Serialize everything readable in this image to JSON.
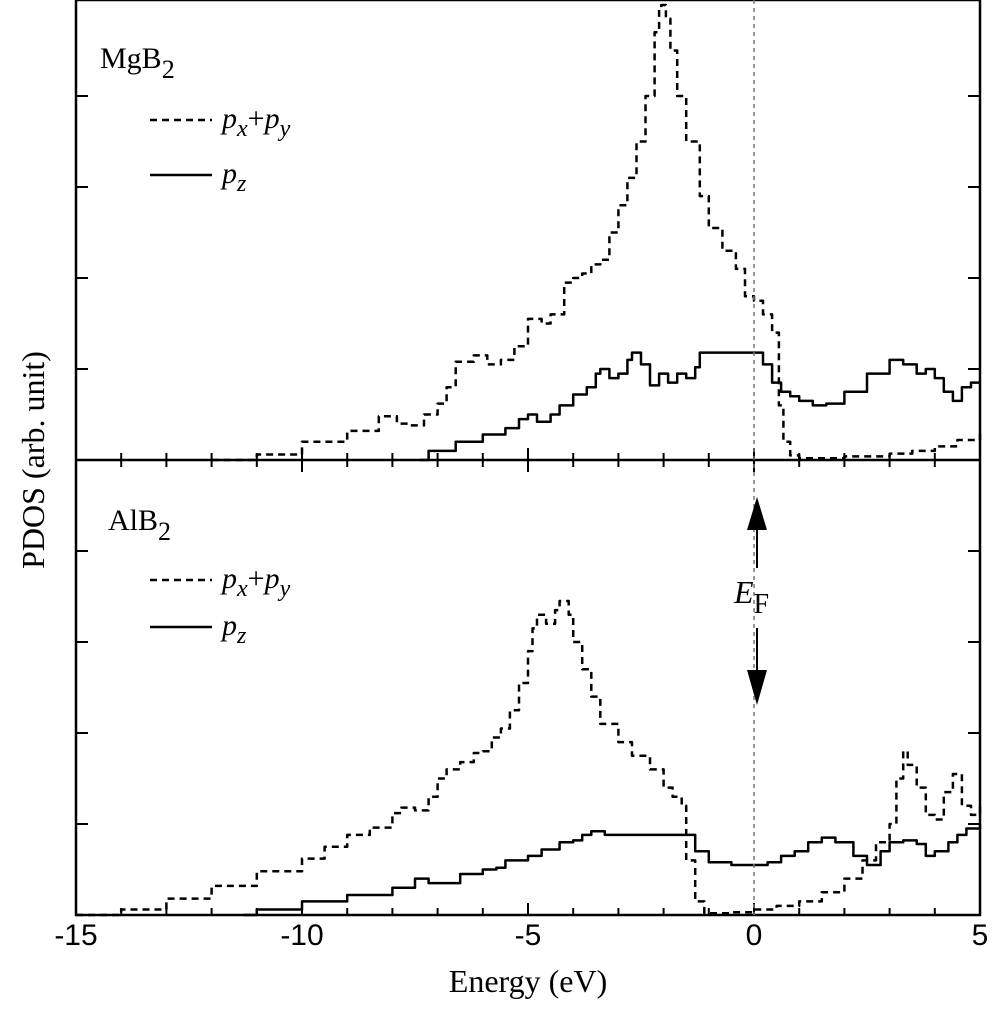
{
  "chart_data": {
    "type": "line",
    "xlabel": "Energy (eV)",
    "ylabel": "PDOS (arb. unit)",
    "xlim": [
      -15,
      5
    ],
    "ylim": [
      0,
      5
    ],
    "x_ticks": [
      -15,
      -10,
      -5,
      0,
      5
    ],
    "x_tick_labels": [
      "-15",
      "-10",
      "-5",
      "0",
      "5"
    ],
    "fermi_level": 0,
    "fermi_label": {
      "main": "E",
      "sub": "F"
    },
    "panels": [
      {
        "label": {
          "main": "MgB",
          "sub": "2"
        },
        "series": [
          {
            "name": "px+py",
            "legend": {
              "p1": "p",
              "s1": "x",
              "plus": "+",
              "p2": "p",
              "s2": "y"
            },
            "style": "dashed",
            "points": [
              [
                -12.0,
                0.0
              ],
              [
                -11.0,
                0.06
              ],
              [
                -10.0,
                0.2
              ],
              [
                -9.0,
                0.32
              ],
              [
                -8.3,
                0.48
              ],
              [
                -7.9,
                0.4
              ],
              [
                -7.6,
                0.38
              ],
              [
                -7.3,
                0.5
              ],
              [
                -7.0,
                0.62
              ],
              [
                -6.8,
                0.8
              ],
              [
                -6.6,
                1.08
              ],
              [
                -6.2,
                1.15
              ],
              [
                -5.9,
                1.05
              ],
              [
                -5.6,
                1.1
              ],
              [
                -5.3,
                1.25
              ],
              [
                -5.0,
                1.55
              ],
              [
                -4.7,
                1.5
              ],
              [
                -4.5,
                1.6
              ],
              [
                -4.2,
                1.95
              ],
              [
                -4.0,
                2.0
              ],
              [
                -3.8,
                2.05
              ],
              [
                -3.6,
                2.15
              ],
              [
                -3.4,
                2.2
              ],
              [
                -3.2,
                2.5
              ],
              [
                -3.0,
                2.8
              ],
              [
                -2.8,
                3.1
              ],
              [
                -2.6,
                3.5
              ],
              [
                -2.4,
                4.0
              ],
              [
                -2.2,
                4.7
              ],
              [
                -2.1,
                4.95
              ],
              [
                -2.05,
                5.0
              ],
              [
                -1.95,
                4.85
              ],
              [
                -1.85,
                4.5
              ],
              [
                -1.7,
                4.0
              ],
              [
                -1.5,
                3.5
              ],
              [
                -1.2,
                2.9
              ],
              [
                -1.0,
                2.55
              ],
              [
                -0.7,
                2.3
              ],
              [
                -0.4,
                2.1
              ],
              [
                -0.2,
                1.8
              ],
              [
                0.0,
                1.75
              ],
              [
                0.2,
                1.6
              ],
              [
                0.4,
                1.4
              ],
              [
                0.55,
                0.6
              ],
              [
                0.65,
                0.2
              ],
              [
                0.8,
                0.05
              ],
              [
                1.0,
                0.02
              ],
              [
                2.0,
                0.04
              ],
              [
                3.0,
                0.07
              ],
              [
                3.5,
                0.1
              ],
              [
                4.0,
                0.15
              ],
              [
                4.5,
                0.22
              ],
              [
                5.0,
                0.32
              ]
            ]
          },
          {
            "name": "pz",
            "legend": {
              "p1": "p",
              "s1": "z"
            },
            "style": "solid",
            "points": [
              [
                -7.4,
                0.0
              ],
              [
                -7.2,
                0.1
              ],
              [
                -6.6,
                0.2
              ],
              [
                -6.0,
                0.28
              ],
              [
                -5.5,
                0.35
              ],
              [
                -5.2,
                0.45
              ],
              [
                -5.0,
                0.5
              ],
              [
                -4.8,
                0.42
              ],
              [
                -4.5,
                0.5
              ],
              [
                -4.3,
                0.6
              ],
              [
                -4.0,
                0.72
              ],
              [
                -3.7,
                0.8
              ],
              [
                -3.5,
                0.95
              ],
              [
                -3.4,
                1.0
              ],
              [
                -3.2,
                0.9
              ],
              [
                -3.0,
                0.95
              ],
              [
                -2.8,
                1.1
              ],
              [
                -2.7,
                1.18
              ],
              [
                -2.5,
                1.05
              ],
              [
                -2.3,
                0.82
              ],
              [
                -2.1,
                0.95
              ],
              [
                -1.9,
                0.85
              ],
              [
                -1.7,
                0.95
              ],
              [
                -1.5,
                0.9
              ],
              [
                -1.3,
                1.02
              ],
              [
                -1.2,
                1.18
              ],
              [
                -1.0,
                1.18
              ],
              [
                0.0,
                1.18
              ],
              [
                0.2,
                1.05
              ],
              [
                0.4,
                0.85
              ],
              [
                0.6,
                0.75
              ],
              [
                0.8,
                0.7
              ],
              [
                1.0,
                0.65
              ],
              [
                1.3,
                0.6
              ],
              [
                1.6,
                0.62
              ],
              [
                2.0,
                0.75
              ],
              [
                2.5,
                0.95
              ],
              [
                3.0,
                1.1
              ],
              [
                3.3,
                1.05
              ],
              [
                3.6,
                0.95
              ],
              [
                3.8,
                1.0
              ],
              [
                4.0,
                0.9
              ],
              [
                4.2,
                0.75
              ],
              [
                4.4,
                0.65
              ],
              [
                4.6,
                0.8
              ],
              [
                4.8,
                0.85
              ],
              [
                5.0,
                0.85
              ]
            ]
          }
        ]
      },
      {
        "label": {
          "main": "AlB",
          "sub": "2"
        },
        "series": [
          {
            "name": "px+py",
            "legend": {
              "p1": "p",
              "s1": "x",
              "plus": "+",
              "p2": "p",
              "s2": "y"
            },
            "style": "dashed",
            "points": [
              [
                -15.0,
                0.0
              ],
              [
                -14.0,
                0.06
              ],
              [
                -13.0,
                0.18
              ],
              [
                -12.0,
                0.32
              ],
              [
                -11.0,
                0.48
              ],
              [
                -10.0,
                0.62
              ],
              [
                -9.5,
                0.75
              ],
              [
                -9.0,
                0.88
              ],
              [
                -8.5,
                0.96
              ],
              [
                -8.0,
                1.12
              ],
              [
                -7.8,
                1.18
              ],
              [
                -7.5,
                1.15
              ],
              [
                -7.2,
                1.3
              ],
              [
                -7.0,
                1.5
              ],
              [
                -6.8,
                1.6
              ],
              [
                -6.5,
                1.68
              ],
              [
                -6.2,
                1.78
              ],
              [
                -6.0,
                1.8
              ],
              [
                -5.8,
                1.95
              ],
              [
                -5.6,
                2.05
              ],
              [
                -5.4,
                2.25
              ],
              [
                -5.2,
                2.55
              ],
              [
                -5.0,
                2.9
              ],
              [
                -4.9,
                3.15
              ],
              [
                -4.8,
                3.3
              ],
              [
                -4.6,
                3.2
              ],
              [
                -4.4,
                3.35
              ],
              [
                -4.3,
                3.45
              ],
              [
                -4.1,
                3.3
              ],
              [
                -4.0,
                3.0
              ],
              [
                -3.8,
                2.7
              ],
              [
                -3.6,
                2.4
              ],
              [
                -3.4,
                2.1
              ],
              [
                -3.0,
                1.9
              ],
              [
                -2.7,
                1.75
              ],
              [
                -2.3,
                1.6
              ],
              [
                -2.0,
                1.4
              ],
              [
                -1.8,
                1.3
              ],
              [
                -1.6,
                1.2
              ],
              [
                -1.5,
                0.6
              ],
              [
                -1.3,
                0.15
              ],
              [
                -1.1,
                0.02
              ],
              [
                -0.5,
                0.03
              ],
              [
                0.0,
                0.06
              ],
              [
                0.5,
                0.1
              ],
              [
                1.0,
                0.15
              ],
              [
                1.5,
                0.25
              ],
              [
                2.0,
                0.4
              ],
              [
                2.4,
                0.6
              ],
              [
                2.7,
                0.8
              ],
              [
                3.0,
                1.0
              ],
              [
                3.15,
                1.5
              ],
              [
                3.3,
                1.8
              ],
              [
                3.4,
                1.65
              ],
              [
                3.6,
                1.4
              ],
              [
                3.8,
                1.1
              ],
              [
                4.0,
                1.05
              ],
              [
                4.2,
                1.35
              ],
              [
                4.4,
                1.55
              ],
              [
                4.6,
                1.2
              ],
              [
                4.8,
                1.1
              ],
              [
                5.0,
                1.2
              ]
            ]
          },
          {
            "name": "pz",
            "legend": {
              "p1": "p",
              "s1": "z"
            },
            "style": "solid",
            "points": [
              [
                -11.3,
                0.0
              ],
              [
                -11.0,
                0.06
              ],
              [
                -10.0,
                0.15
              ],
              [
                -9.0,
                0.22
              ],
              [
                -8.0,
                0.3
              ],
              [
                -7.5,
                0.4
              ],
              [
                -7.2,
                0.35
              ],
              [
                -6.8,
                0.35
              ],
              [
                -6.5,
                0.45
              ],
              [
                -6.0,
                0.5
              ],
              [
                -5.7,
                0.52
              ],
              [
                -5.5,
                0.6
              ],
              [
                -5.0,
                0.65
              ],
              [
                -4.7,
                0.72
              ],
              [
                -4.3,
                0.8
              ],
              [
                -4.0,
                0.82
              ],
              [
                -3.8,
                0.88
              ],
              [
                -3.6,
                0.92
              ],
              [
                -3.3,
                0.88
              ],
              [
                -2.8,
                0.88
              ],
              [
                -1.5,
                0.88
              ],
              [
                -1.3,
                0.7
              ],
              [
                -1.0,
                0.58
              ],
              [
                -0.5,
                0.55
              ],
              [
                0.0,
                0.55
              ],
              [
                0.3,
                0.58
              ],
              [
                0.6,
                0.65
              ],
              [
                0.9,
                0.7
              ],
              [
                1.2,
                0.8
              ],
              [
                1.5,
                0.85
              ],
              [
                1.8,
                0.8
              ],
              [
                2.2,
                0.65
              ],
              [
                2.5,
                0.55
              ],
              [
                2.8,
                0.7
              ],
              [
                3.0,
                0.8
              ],
              [
                3.3,
                0.82
              ],
              [
                3.6,
                0.78
              ],
              [
                3.8,
                0.65
              ],
              [
                4.0,
                0.7
              ],
              [
                4.3,
                0.8
              ],
              [
                4.5,
                0.88
              ],
              [
                4.7,
                0.95
              ],
              [
                5.0,
                1.0
              ]
            ]
          }
        ]
      }
    ]
  }
}
